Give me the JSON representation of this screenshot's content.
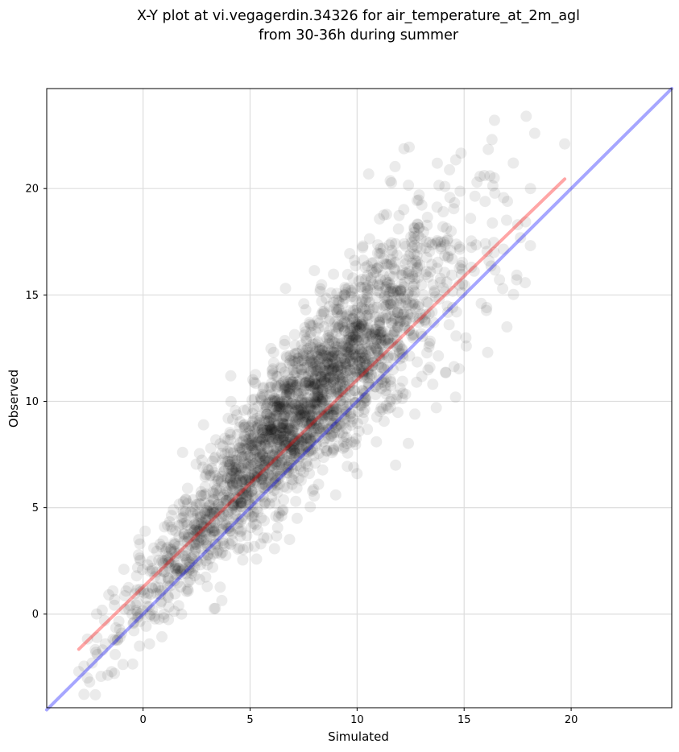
{
  "chart_data": {
    "type": "scatter",
    "title_lines": [
      "X-Y plot at vi.vegagerdin.34326 for air_temperature_at_2m_agl",
      "from 30-36h during summer"
    ],
    "xlabel": "Simulated",
    "ylabel": "Observed",
    "xlim": [
      -4.5,
      24.7
    ],
    "ylim": [
      -4.4,
      24.7
    ],
    "xticks": [
      0,
      5,
      10,
      15,
      20
    ],
    "yticks": [
      0,
      5,
      10,
      15,
      20
    ],
    "grid": true,
    "legend": "none",
    "point_color": "#000000",
    "point_alpha": 0.08,
    "point_count_approx": 2500,
    "points_sample": [
      [
        -3.0,
        -2.7
      ],
      [
        -2.6,
        -3.0
      ],
      [
        -2.2,
        -1.8
      ],
      [
        -1.8,
        -0.3
      ],
      [
        -1.6,
        0.9
      ],
      [
        -1.3,
        -1.9
      ],
      [
        -1.0,
        -0.9
      ],
      [
        -0.6,
        0.4
      ],
      [
        -0.3,
        1.8
      ],
      [
        -0.2,
        3.5
      ],
      [
        0.1,
        3.9
      ],
      [
        0.3,
        -1.4
      ],
      [
        0.4,
        2.5
      ],
      [
        0.8,
        1.1
      ],
      [
        1.0,
        4.1
      ],
      [
        1.5,
        3.3
      ],
      [
        1.8,
        0.0
      ],
      [
        2.0,
        5.4
      ],
      [
        2.4,
        2.2
      ],
      [
        2.8,
        6.9
      ],
      [
        3.0,
        1.3
      ],
      [
        3.3,
        4.6
      ],
      [
        3.6,
        8.0
      ],
      [
        3.7,
        2.9
      ],
      [
        4.1,
        11.2
      ],
      [
        4.2,
        5.2
      ],
      [
        4.5,
        3.1
      ],
      [
        4.5,
        7.8
      ],
      [
        4.9,
        5.6
      ],
      [
        5.2,
        10.1
      ],
      [
        5.5,
        3.3
      ],
      [
        5.6,
        6.5
      ],
      [
        5.8,
        9.4
      ],
      [
        6.1,
        12.3
      ],
      [
        6.2,
        4.6
      ],
      [
        6.4,
        8.4
      ],
      [
        6.8,
        7.0
      ],
      [
        7.0,
        11.9
      ],
      [
        7.2,
        4.5
      ],
      [
        7.4,
        9.6
      ],
      [
        7.6,
        14.3
      ],
      [
        7.8,
        7.7
      ],
      [
        8.0,
        11.0
      ],
      [
        8.2,
        6.1
      ],
      [
        8.5,
        9.3
      ],
      [
        8.7,
        13.3
      ],
      [
        9.0,
        5.6
      ],
      [
        9.1,
        10.7
      ],
      [
        9.4,
        15.0
      ],
      [
        9.5,
        8.3
      ],
      [
        9.9,
        12.2
      ],
      [
        10.0,
        6.6
      ],
      [
        10.2,
        9.8
      ],
      [
        10.4,
        14.3
      ],
      [
        10.6,
        11.1
      ],
      [
        10.9,
        8.1
      ],
      [
        11.1,
        13.0
      ],
      [
        11.4,
        15.5
      ],
      [
        11.6,
        10.1
      ],
      [
        11.8,
        7.0
      ],
      [
        12.0,
        12.0
      ],
      [
        12.2,
        17.4
      ],
      [
        12.5,
        13.9
      ],
      [
        12.7,
        9.4
      ],
      [
        12.9,
        19.7
      ],
      [
        13.1,
        15.0
      ],
      [
        13.4,
        11.6
      ],
      [
        13.7,
        9.7
      ],
      [
        13.9,
        17.5
      ],
      [
        14.1,
        20.1
      ],
      [
        14.3,
        13.6
      ],
      [
        14.6,
        10.2
      ],
      [
        14.9,
        16.2
      ],
      [
        15.1,
        12.6
      ],
      [
        15.3,
        18.6
      ],
      [
        15.6,
        20.3
      ],
      [
        15.8,
        14.6
      ],
      [
        16.1,
        12.3
      ],
      [
        16.3,
        22.3
      ],
      [
        16.4,
        17.0
      ],
      [
        16.8,
        15.3
      ],
      [
        17.0,
        13.5
      ],
      [
        17.3,
        21.2
      ],
      [
        17.5,
        18.3
      ],
      [
        17.9,
        23.4
      ],
      [
        18.1,
        20.0
      ],
      [
        18.3,
        22.6
      ],
      [
        19.7,
        22.1
      ]
    ],
    "series": [
      {
        "name": "",
        "type": "line",
        "color": "#ff0000",
        "alpha": 0.35,
        "x": [
          -3.0,
          19.7
        ],
        "y": [
          -1.65,
          20.45
        ]
      },
      {
        "name": "",
        "type": "line",
        "color": "#0000ff",
        "alpha": 0.35,
        "x": [
          -4.5,
          24.7
        ],
        "y": [
          -4.5,
          24.7
        ]
      }
    ]
  }
}
